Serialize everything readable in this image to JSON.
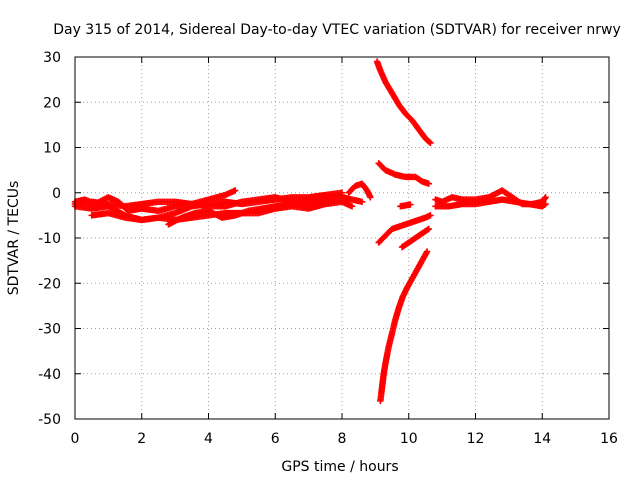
{
  "chart_data": {
    "type": "scatter",
    "title": "Day 315 of 2014, Sidereal Day-to-day VTEC variation (SDTVAR) for receiver nrwy",
    "xlabel": "GPS time / hours",
    "ylabel": "SDTVAR / TECUs",
    "xlim": [
      0,
      16
    ],
    "ylim": [
      -50,
      30
    ],
    "xticks": [
      "0",
      "2",
      "4",
      "6",
      "8",
      "10",
      "12",
      "14",
      "16"
    ],
    "yticks": [
      "30",
      "20",
      "10",
      "0",
      "-10",
      "-20",
      "-30",
      "-40",
      "-50"
    ],
    "grid": true,
    "marker": "+",
    "color": "#ff0000",
    "series": [
      {
        "points": [
          [
            0.0,
            -2.0
          ],
          [
            0.3,
            -1.5
          ],
          [
            0.6,
            -2.5
          ],
          [
            1.0,
            -1.0
          ],
          [
            1.3,
            -2.0
          ],
          [
            1.6,
            -4.0
          ],
          [
            2.0,
            -3.5
          ],
          [
            2.5,
            -4.0
          ],
          [
            3.0,
            -3.0
          ],
          [
            3.5,
            -2.5
          ],
          [
            4.0,
            -1.5
          ],
          [
            4.5,
            -0.5
          ],
          [
            4.8,
            0.5
          ]
        ]
      },
      {
        "points": [
          [
            0.0,
            -3.0
          ],
          [
            0.5,
            -3.5
          ],
          [
            1.0,
            -3.0
          ],
          [
            1.5,
            -5.0
          ],
          [
            2.0,
            -6.0
          ],
          [
            2.5,
            -5.5
          ],
          [
            3.0,
            -4.5
          ],
          [
            3.5,
            -3.0
          ],
          [
            4.0,
            -2.5
          ],
          [
            4.5,
            -2.0
          ],
          [
            5.0,
            -2.5
          ],
          [
            5.5,
            -2.0
          ],
          [
            6.0,
            -1.5
          ],
          [
            6.5,
            -1.0
          ],
          [
            7.0,
            -1.0
          ],
          [
            7.5,
            -0.5
          ],
          [
            8.0,
            0.0
          ]
        ]
      },
      {
        "points": [
          [
            0.0,
            -2.5
          ],
          [
            0.5,
            -2.0
          ],
          [
            1.0,
            -2.5
          ],
          [
            1.5,
            -3.0
          ],
          [
            2.0,
            -2.5
          ],
          [
            2.5,
            -2.0
          ],
          [
            3.0,
            -2.0
          ],
          [
            3.5,
            -2.5
          ],
          [
            4.0,
            -3.0
          ],
          [
            4.5,
            -3.0
          ],
          [
            5.0,
            -2.0
          ],
          [
            5.5,
            -1.5
          ],
          [
            6.0,
            -1.0
          ],
          [
            6.5,
            -2.0
          ],
          [
            7.0,
            -2.5
          ],
          [
            7.5,
            -1.5
          ],
          [
            8.0,
            -1.0
          ],
          [
            8.3,
            -1.5
          ],
          [
            8.6,
            -2.0
          ]
        ]
      },
      {
        "points": [
          [
            0.5,
            -5.0
          ],
          [
            1.0,
            -4.5
          ],
          [
            1.5,
            -5.5
          ],
          [
            2.0,
            -6.0
          ],
          [
            2.5,
            -5.5
          ],
          [
            3.0,
            -6.0
          ],
          [
            3.5,
            -5.5
          ],
          [
            4.0,
            -5.0
          ],
          [
            4.5,
            -4.5
          ],
          [
            5.0,
            -4.5
          ],
          [
            5.5,
            -4.5
          ],
          [
            6.0,
            -3.5
          ],
          [
            6.5,
            -3.0
          ],
          [
            7.0,
            -3.5
          ],
          [
            7.5,
            -2.5
          ],
          [
            8.0,
            -2.0
          ],
          [
            8.3,
            -3.0
          ]
        ]
      },
      {
        "points": [
          [
            2.8,
            -7.0
          ],
          [
            3.2,
            -5.5
          ],
          [
            3.6,
            -4.5
          ],
          [
            4.0,
            -4.0
          ],
          [
            4.4,
            -5.5
          ],
          [
            4.8,
            -5.0
          ],
          [
            5.2,
            -4.0
          ],
          [
            5.6,
            -3.5
          ],
          [
            6.0,
            -3.0
          ],
          [
            6.4,
            -2.5
          ],
          [
            6.8,
            -2.0
          ],
          [
            7.2,
            -1.5
          ],
          [
            7.6,
            -1.0
          ],
          [
            8.0,
            -0.5
          ]
        ]
      },
      {
        "points": [
          [
            8.2,
            0.0
          ],
          [
            8.4,
            1.5
          ],
          [
            8.6,
            2.0
          ],
          [
            8.75,
            0.5
          ],
          [
            8.85,
            -1.0
          ]
        ]
      },
      {
        "points": [
          [
            9.05,
            29.0
          ],
          [
            9.15,
            27.0
          ],
          [
            9.3,
            24.5
          ],
          [
            9.5,
            22.0
          ],
          [
            9.7,
            19.5
          ],
          [
            9.9,
            17.5
          ],
          [
            10.1,
            16.0
          ],
          [
            10.3,
            14.0
          ],
          [
            10.5,
            12.0
          ],
          [
            10.65,
            11.0
          ]
        ]
      },
      {
        "points": [
          [
            9.1,
            6.5
          ],
          [
            9.3,
            5.0
          ],
          [
            9.6,
            4.0
          ],
          [
            9.9,
            3.5
          ],
          [
            10.2,
            3.5
          ],
          [
            10.4,
            2.5
          ],
          [
            10.6,
            2.0
          ]
        ]
      },
      {
        "points": [
          [
            9.1,
            -11.0
          ],
          [
            9.3,
            -9.5
          ],
          [
            9.5,
            -8.0
          ],
          [
            9.7,
            -7.5
          ],
          [
            9.9,
            -7.0
          ],
          [
            10.1,
            -6.5
          ],
          [
            10.3,
            -6.0
          ],
          [
            10.5,
            -5.5
          ],
          [
            10.65,
            -5.0
          ]
        ]
      },
      {
        "points": [
          [
            9.8,
            -12.0
          ],
          [
            10.0,
            -11.0
          ],
          [
            10.2,
            -10.0
          ],
          [
            10.4,
            -9.0
          ],
          [
            10.6,
            -8.0
          ]
        ]
      },
      {
        "points": [
          [
            9.15,
            -46.0
          ],
          [
            9.2,
            -43.0
          ],
          [
            9.25,
            -40.0
          ],
          [
            9.32,
            -37.0
          ],
          [
            9.4,
            -34.0
          ],
          [
            9.5,
            -31.0
          ],
          [
            9.6,
            -28.0
          ],
          [
            9.7,
            -25.5
          ],
          [
            9.82,
            -23.0
          ],
          [
            9.95,
            -21.0
          ],
          [
            10.1,
            -19.0
          ],
          [
            10.25,
            -17.0
          ],
          [
            10.4,
            -15.0
          ],
          [
            10.55,
            -13.0
          ]
        ]
      },
      {
        "points": [
          [
            9.75,
            -3.0
          ],
          [
            9.9,
            -2.8
          ],
          [
            10.05,
            -2.6
          ]
        ]
      },
      {
        "points": [
          [
            10.8,
            -1.5
          ],
          [
            11.0,
            -2.0
          ],
          [
            11.3,
            -1.0
          ],
          [
            11.6,
            -1.5
          ],
          [
            12.0,
            -1.5
          ],
          [
            12.4,
            -1.0
          ],
          [
            12.8,
            0.5
          ],
          [
            13.1,
            -1.0
          ],
          [
            13.4,
            -2.5
          ],
          [
            13.7,
            -2.5
          ],
          [
            14.0,
            -2.0
          ],
          [
            14.1,
            -1.0
          ]
        ]
      },
      {
        "points": [
          [
            10.8,
            -3.0
          ],
          [
            11.2,
            -3.0
          ],
          [
            11.6,
            -2.5
          ],
          [
            12.0,
            -2.5
          ],
          [
            12.4,
            -2.0
          ],
          [
            12.8,
            -1.5
          ],
          [
            13.2,
            -2.0
          ],
          [
            13.6,
            -2.5
          ],
          [
            14.0,
            -3.0
          ],
          [
            14.1,
            -2.5
          ]
        ]
      }
    ]
  }
}
